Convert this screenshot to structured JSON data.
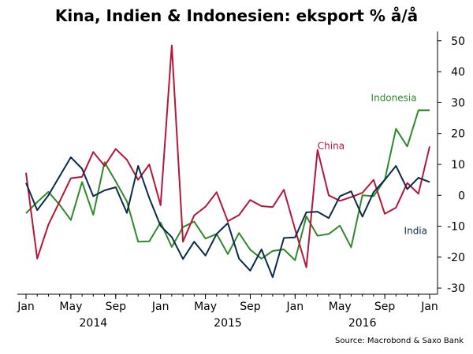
{
  "chart_data": {
    "type": "line",
    "title": "Kina, Indien & Indonesien: eksport % å/å",
    "source": "Source: Macrobond & Saxo Bank",
    "x": [
      "2014-01",
      "2014-02",
      "2014-03",
      "2014-04",
      "2014-05",
      "2014-06",
      "2014-07",
      "2014-08",
      "2014-09",
      "2014-10",
      "2014-11",
      "2014-12",
      "2015-01",
      "2015-02",
      "2015-03",
      "2015-04",
      "2015-05",
      "2015-06",
      "2015-07",
      "2015-08",
      "2015-09",
      "2015-10",
      "2015-11",
      "2015-12",
      "2016-01",
      "2016-02",
      "2016-03",
      "2016-04",
      "2016-05",
      "2016-06",
      "2016-07",
      "2016-08",
      "2016-09",
      "2016-10",
      "2016-11",
      "2016-12",
      "2017-01"
    ],
    "x_tick_labels": [
      "Jan",
      "May",
      "Sep",
      "Jan",
      "May",
      "Sep",
      "Jan",
      "May",
      "Sep",
      "Jan"
    ],
    "x_tick_months": [
      "2014-01",
      "2014-05",
      "2014-09",
      "2015-01",
      "2015-05",
      "2015-09",
      "2016-01",
      "2016-05",
      "2016-09",
      "2017-01"
    ],
    "year_labels": [
      {
        "label": "2014",
        "center_month": "2014-07"
      },
      {
        "label": "2015",
        "center_month": "2015-07"
      },
      {
        "label": "2016",
        "center_month": "2016-07"
      }
    ],
    "y_ticks": [
      -30,
      -20,
      -10,
      0,
      10,
      20,
      30,
      40,
      50
    ],
    "ylim": [
      -32,
      53
    ],
    "y_axis_side": "right",
    "grid": false,
    "legend": "inline labels",
    "series": [
      {
        "name": "China",
        "color": "#b5163a",
        "values": [
          7.3,
          -20.5,
          -9.5,
          -2,
          5.5,
          6,
          14,
          9.5,
          15,
          11.5,
          5,
          10,
          -3.2,
          48.5,
          -15,
          -6.5,
          -3.7,
          1,
          -8.4,
          -6.4,
          -1.5,
          -3.5,
          -3.8,
          1.8,
          -11,
          -23.3,
          14.7,
          0,
          -1.8,
          -0.6,
          0.8,
          5,
          -6,
          -4,
          4,
          0.5,
          15.8
        ],
        "label_at": "2016-03"
      },
      {
        "name": "India",
        "color": "#0c2a4a",
        "values": [
          4,
          -4.8,
          0,
          6.2,
          12.3,
          8.6,
          -0.3,
          1.6,
          2.6,
          -5.7,
          9.5,
          -0.9,
          -9.9,
          -13.5,
          -20.6,
          -15,
          -19.5,
          -12.5,
          -9,
          -20.5,
          -24.4,
          -17.5,
          -26.5,
          -13.8,
          -13.6,
          -5.5,
          -5.3,
          -7.4,
          -0.3,
          1.3,
          -6.9,
          1,
          5,
          9.5,
          2,
          5.7,
          4.3
        ],
        "label_at": "2016-11"
      },
      {
        "name": "Indonesia",
        "color": "#2e8a2a",
        "values": [
          -5.8,
          -2.2,
          1.1,
          -3.1,
          -8,
          4.3,
          -6.3,
          10.7,
          4.5,
          -2,
          -15,
          -14.9,
          -8.8,
          -16.7,
          -10.3,
          -8.5,
          -14,
          -12.5,
          -19,
          -12.2,
          -17.6,
          -20.5,
          -18,
          -17.5,
          -21,
          -6.8,
          -13.1,
          -12.5,
          -9.8,
          -16.8,
          0,
          -0.3,
          5,
          21.5,
          15.8,
          27.5,
          27.5
        ],
        "label_at": "2016-11"
      }
    ]
  }
}
